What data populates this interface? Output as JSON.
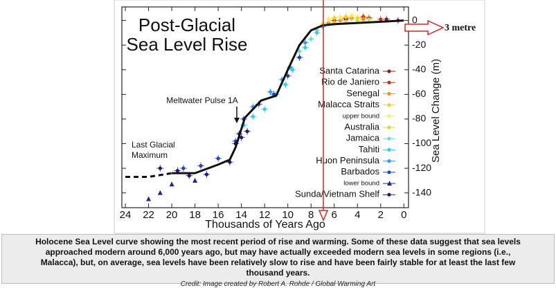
{
  "chart_data": {
    "type": "line",
    "title": [
      "Post-Glacial",
      "Sea Level Rise"
    ],
    "xlabel": "Thousands of Years Ago",
    "ylabel": "Sea Level Change (m)",
    "annotations": [
      "Meltwater Pulse 1A",
      "Last Glacial",
      "Maximum",
      "3 metre"
    ],
    "xlim": [
      24.3,
      -0.4
    ],
    "ylim": [
      -152,
      11
    ],
    "xticks": [
      24,
      22,
      20,
      18,
      16,
      14,
      12,
      10,
      8,
      6,
      4,
      2,
      0
    ],
    "yticks": [
      0,
      -20,
      -40,
      -60,
      -80,
      -100,
      -120,
      -140
    ],
    "series": [
      {
        "color": "#111111",
        "style": "dashed",
        "x": [
          24,
          22,
          20
        ],
        "values": [
          -127,
          -127,
          -124
        ]
      },
      {
        "color": "#111111",
        "style": "solid",
        "x": [
          20,
          18,
          16,
          15,
          14.5,
          13.7,
          12.3,
          11,
          10,
          9,
          8,
          7,
          6,
          0
        ],
        "values": [
          -124,
          -124,
          -117,
          -113,
          -103,
          -79,
          -65,
          -61,
          -40,
          -20,
          -8,
          -4,
          -3,
          0
        ]
      },
      {
        "name": "Santa Catarina",
        "color": "#8b1a1a",
        "marker": "dot",
        "x": [
          5,
          3,
          1.5,
          0.5
        ],
        "values": [
          1,
          2,
          1,
          0
        ]
      },
      {
        "name": "Rio de Janiero",
        "color": "#d62a00",
        "marker": "dot",
        "x": [
          6,
          5,
          3.5,
          2
        ],
        "values": [
          0,
          2,
          3,
          1
        ]
      },
      {
        "name": "Senegal",
        "color": "#ff8c00",
        "marker": "dot",
        "x": [
          6.5,
          5.5,
          4.5,
          3.5
        ],
        "values": [
          -2,
          0,
          2,
          1
        ]
      },
      {
        "name": "Malacca Straits",
        "color": "#ffd000",
        "marker": "dot",
        "x": [
          7,
          6,
          5,
          4
        ],
        "values": [
          -3,
          2,
          3,
          2
        ]
      },
      {
        "name": "upper bound",
        "color": "#ffee55",
        "marker": "dot",
        "x": [
          6.5,
          5.5,
          4.5
        ],
        "values": [
          1,
          3,
          4
        ]
      },
      {
        "name": "Australia",
        "color": "#c8e632",
        "marker": "dot",
        "x": [
          7,
          6,
          5,
          4,
          3
        ],
        "values": [
          -5,
          -2,
          -1,
          0,
          1
        ]
      },
      {
        "name": "Jamaica",
        "color": "#66e0c8",
        "marker": "dot",
        "x": [
          9,
          8,
          7.5
        ],
        "values": [
          -25,
          -15,
          -8
        ]
      },
      {
        "name": "Tahiti",
        "color": "#33ccee",
        "marker": "dot",
        "x": [
          13.8,
          13,
          12,
          11,
          10.2,
          9.6,
          9,
          8.5,
          7.5,
          7
        ],
        "values": [
          -85,
          -78,
          -72,
          -60,
          -52,
          -40,
          -30,
          -22,
          -10,
          -5
        ]
      },
      {
        "name": "Huon Peninsula",
        "color": "#3399ff",
        "marker": "dot",
        "x": [
          13,
          11.5,
          10.5,
          9.8,
          8.5
        ],
        "values": [
          -70,
          -58,
          -48,
          -38,
          -18
        ]
      },
      {
        "name": "Barbados",
        "color": "#2244cc",
        "marker": "dot",
        "x": [
          19,
          17.5,
          16,
          14.5,
          14.2,
          13.8,
          12.5,
          11.2,
          10,
          9
        ],
        "values": [
          -120,
          -118,
          -112,
          -98,
          -92,
          -80,
          -68,
          -60,
          -45,
          -30
        ]
      },
      {
        "name": "lower bound",
        "color": "#1a2a8a",
        "marker": "triangle",
        "x": [
          22,
          21,
          20,
          18
        ],
        "values": [
          -145,
          -140,
          -133,
          -130
        ]
      },
      {
        "name": "Sunda/Vietnam Shelf",
        "color": "#1a1a80",
        "marker": "dot",
        "x": [
          21,
          19.5,
          18.5,
          17,
          15,
          14.5,
          14,
          13.5
        ],
        "values": [
          -120,
          -122,
          -126,
          -125,
          -115,
          -100,
          -95,
          -90
        ]
      }
    ]
  },
  "caption": "Holocene Sea Level curve showing the most recent period of rise and warming. Some of these data suggest that sea levels approached modern around 6,000 years ago, but may have actually exceeded modern sea levels in some regions (i.e., Malacca), but, on average, sea levels have been relatively slow to rise and have been fairly stable for at least the last few thousand years.",
  "credit": "Credit: Image created by Robert A. Rohde / Global Warming Art"
}
